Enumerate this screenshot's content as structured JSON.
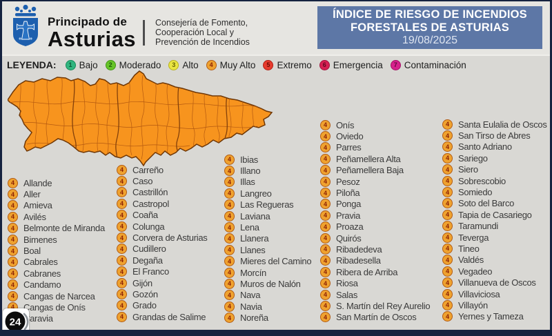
{
  "page": {
    "background": "#d9d8d4",
    "frame_color": "#15223f"
  },
  "header": {
    "org_name_line1": "Principado de",
    "org_name_line2": "Asturias",
    "department_lines": [
      "Consejería de Fomento,",
      "Cooperación Local y",
      "Prevención de Incendios"
    ],
    "title": {
      "line1": "ÍNDICE DE RIESGO DE INCENDIOS",
      "line2": "FORESTALES DE ASTURIAS",
      "date": "19/08/2025",
      "background": "#5d77a6"
    }
  },
  "legend": {
    "label": "LEYENDA:",
    "items": [
      {
        "level": "1",
        "name": "Bajo",
        "fill": "#31b57f",
        "ring": "#128a58",
        "num": "#0a5a36"
      },
      {
        "level": "2",
        "name": "Moderado",
        "fill": "#66c428",
        "ring": "#3f9413",
        "num": "#1d5c0a"
      },
      {
        "level": "3",
        "name": "Alto",
        "fill": "#e9e542",
        "ring": "#b7b01e",
        "num": "#6b6605"
      },
      {
        "level": "4",
        "name": "Muy Alto",
        "fill": "#efa22f",
        "ring": "#b25b13",
        "num": "#8c2104"
      },
      {
        "level": "5",
        "name": "Extremo",
        "fill": "#e73c2e",
        "ring": "#b01d12",
        "num": "#6b0a05"
      },
      {
        "level": "6",
        "name": "Emergencia",
        "fill": "#d62053",
        "ring": "#a30f3a",
        "num": "#5c0a1f"
      },
      {
        "level": "7",
        "name": "Contaminación",
        "fill": "#d6218c",
        "ring": "#a30f63",
        "num": "#5c0a3a"
      }
    ]
  },
  "map": {
    "region": "Asturias",
    "fill": "#f7941e",
    "border": "#6e3605"
  },
  "risk_level": "4",
  "badge": {
    "fill": "#efa22f",
    "ring": "#b25b13",
    "num": "#8c2104"
  },
  "municipalities": {
    "columns": [
      [
        "Allande",
        "Aller",
        "Amieva",
        "Avilés",
        "Belmonte de Miranda",
        "Bimenes",
        "Boal",
        "Cabrales",
        "Cabranes",
        "Candamo",
        "Cangas de Narcea",
        "Cangas de Onís",
        "Caravia"
      ],
      [
        "Carreño",
        "Caso",
        "Castrillón",
        "Castropol",
        "Coaña",
        "Colunga",
        "Corvera de Asturias",
        "Cudillero",
        "Degaña",
        "El Franco",
        "Gijón",
        "Gozón",
        "Grado",
        "Grandas de Salime"
      ],
      [
        "Ibias",
        "Illano",
        "Illas",
        "Langreo",
        "Las Regueras",
        "Laviana",
        "Lena",
        "Llanera",
        "Llanes",
        "Mieres del Camino",
        "Morcín",
        "Muros de Nalón",
        "Nava",
        "Navia",
        "Noreña"
      ],
      [
        "Onís",
        "Oviedo",
        "Parres",
        "Peñamellera Alta",
        "Peñamellera Baja",
        "Pesoz",
        "Piloña",
        "Ponga",
        "Pravia",
        "Proaza",
        "Quirós",
        "Ribadedeva",
        "Ribadesella",
        "Ribera de Arriba",
        "Riosa",
        "Salas",
        "S. Martín del Rey Aurelio",
        "San Martín de Oscos"
      ],
      [
        "Santa Eulalia de Oscos",
        "San Tirso de Abres",
        "Santo Adriano",
        "Sariego",
        "Siero",
        "Sobrescobio",
        "Somiedo",
        "Soto del Barco",
        "Tapia de Casariego",
        "Taramundi",
        "Teverga",
        "Tineo",
        "Valdés",
        "Vegadeo",
        "Villanueva de Oscos",
        "Villaviciosa",
        "Villayón",
        "Yernes y Tameza"
      ]
    ]
  },
  "watermark": {
    "text": "24"
  }
}
